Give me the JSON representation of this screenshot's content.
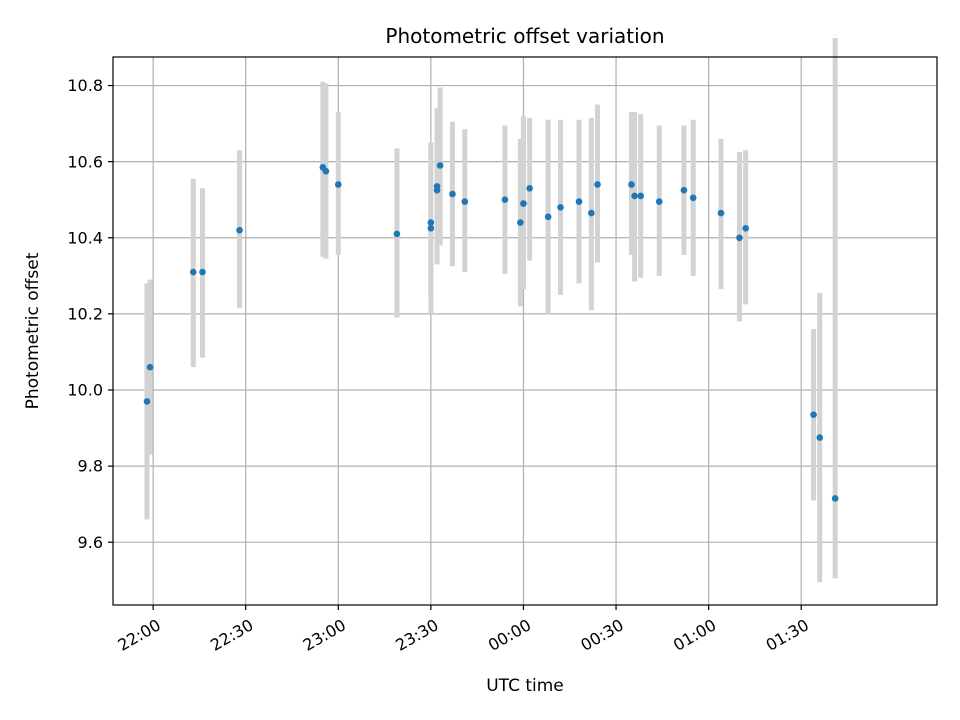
{
  "chart_data": {
    "type": "scatter",
    "title": "Photometric offset variation",
    "xlabel": "UTC time",
    "ylabel": "Photometric offset",
    "grid": true,
    "x_ticks": [
      "22:00",
      "22:30",
      "23:00",
      "23:30",
      "00:00",
      "00:30",
      "01:00",
      "01:30"
    ],
    "y_ticks": [
      "9.6",
      "9.8",
      "10.0",
      "10.2",
      "10.4",
      "10.6",
      "10.8"
    ],
    "xlim": [
      "21:47",
      "02:14"
    ],
    "ylim": [
      9.435,
      10.875
    ],
    "colors": {
      "point": "#1f77b4",
      "errorbar": "#d3d3d3",
      "grid": "#b0b0b0"
    },
    "series": [
      {
        "points": [
          {
            "x": "21:58",
            "y": 9.97,
            "low": 9.66,
            "high": 10.28
          },
          {
            "x": "21:59",
            "y": 10.06,
            "low": 9.83,
            "high": 10.29
          },
          {
            "x": "22:13",
            "y": 10.31,
            "low": 10.06,
            "high": 10.555
          },
          {
            "x": "22:16",
            "y": 10.31,
            "low": 10.085,
            "high": 10.53
          },
          {
            "x": "22:28",
            "y": 10.42,
            "low": 10.215,
            "high": 10.63
          },
          {
            "x": "22:55",
            "y": 10.585,
            "low": 10.35,
            "high": 10.81
          },
          {
            "x": "22:56",
            "y": 10.575,
            "low": 10.345,
            "high": 10.805
          },
          {
            "x": "23:00",
            "y": 10.54,
            "low": 10.355,
            "high": 10.73
          },
          {
            "x": "23:19",
            "y": 10.41,
            "low": 10.19,
            "high": 10.635
          },
          {
            "x": "23:30",
            "y": 10.44,
            "low": 10.235,
            "high": 10.65
          },
          {
            "x": "23:30",
            "y": 10.425,
            "low": 10.2,
            "high": 10.65
          },
          {
            "x": "23:32",
            "y": 10.525,
            "low": 10.33,
            "high": 10.74
          },
          {
            "x": "23:32",
            "y": 10.535,
            "low": 10.34,
            "high": 10.74
          },
          {
            "x": "23:33",
            "y": 10.59,
            "low": 10.38,
            "high": 10.795
          },
          {
            "x": "23:37",
            "y": 10.515,
            "low": 10.325,
            "high": 10.705
          },
          {
            "x": "23:41",
            "y": 10.495,
            "low": 10.31,
            "high": 10.685
          },
          {
            "x": "23:54",
            "y": 10.5,
            "low": 10.305,
            "high": 10.695
          },
          {
            "x": "23:59",
            "y": 10.44,
            "low": 10.22,
            "high": 10.66
          },
          {
            "x": "00:00",
            "y": 10.49,
            "low": 10.265,
            "high": 10.72
          },
          {
            "x": "00:00",
            "y": 10.49,
            "low": 10.27,
            "high": 10.715
          },
          {
            "x": "00:02",
            "y": 10.53,
            "low": 10.34,
            "high": 10.715
          },
          {
            "x": "00:08",
            "y": 10.455,
            "low": 10.2,
            "high": 10.71
          },
          {
            "x": "00:12",
            "y": 10.48,
            "low": 10.25,
            "high": 10.71
          },
          {
            "x": "00:18",
            "y": 10.495,
            "low": 10.28,
            "high": 10.71
          },
          {
            "x": "00:22",
            "y": 10.465,
            "low": 10.21,
            "high": 10.715
          },
          {
            "x": "00:24",
            "y": 10.54,
            "low": 10.335,
            "high": 10.75
          },
          {
            "x": "00:35",
            "y": 10.54,
            "low": 10.355,
            "high": 10.73
          },
          {
            "x": "00:36",
            "y": 10.51,
            "low": 10.285,
            "high": 10.73
          },
          {
            "x": "00:38",
            "y": 10.51,
            "low": 10.295,
            "high": 10.725
          },
          {
            "x": "00:44",
            "y": 10.495,
            "low": 10.3,
            "high": 10.695
          },
          {
            "x": "00:52",
            "y": 10.525,
            "low": 10.355,
            "high": 10.695
          },
          {
            "x": "00:55",
            "y": 10.505,
            "low": 10.3,
            "high": 10.71
          },
          {
            "x": "01:04",
            "y": 10.465,
            "low": 10.265,
            "high": 10.66
          },
          {
            "x": "01:10",
            "y": 10.4,
            "low": 10.18,
            "high": 10.625
          },
          {
            "x": "01:12",
            "y": 10.425,
            "low": 10.225,
            "high": 10.63
          },
          {
            "x": "01:34",
            "y": 9.935,
            "low": 9.71,
            "high": 10.16
          },
          {
            "x": "01:36",
            "y": 9.875,
            "low": 9.495,
            "high": 10.255
          },
          {
            "x": "01:41",
            "y": 9.715,
            "low": 9.505,
            "high": 10.925
          }
        ]
      }
    ]
  }
}
